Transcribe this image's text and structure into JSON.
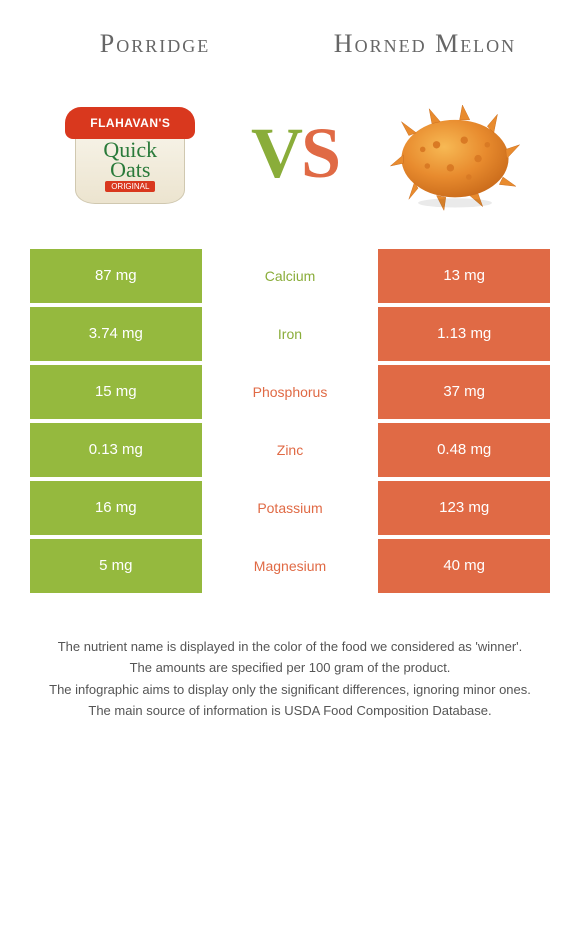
{
  "titles": {
    "left": "Porridge",
    "right": "Horned Melon"
  },
  "vs": {
    "v": "V",
    "s": "S"
  },
  "colors": {
    "left_bg": "#95b93e",
    "right_bg": "#e06a45",
    "left_text": "#8aad3a",
    "right_text": "#e06a45"
  },
  "images": {
    "oats_banner": "FLAHAVAN'S",
    "oats_line1": "Quick",
    "oats_line2": "Oats",
    "oats_tag": "ORIGINAL"
  },
  "rows": [
    {
      "left": "87 mg",
      "mid": "Calcium",
      "right": "13 mg",
      "winner": "left"
    },
    {
      "left": "3.74 mg",
      "mid": "Iron",
      "right": "1.13 mg",
      "winner": "left"
    },
    {
      "left": "15 mg",
      "mid": "Phosphorus",
      "right": "37 mg",
      "winner": "right"
    },
    {
      "left": "0.13 mg",
      "mid": "Zinc",
      "right": "0.48 mg",
      "winner": "right"
    },
    {
      "left": "16 mg",
      "mid": "Potassium",
      "right": "123 mg",
      "winner": "right"
    },
    {
      "left": "5 mg",
      "mid": "Magnesium",
      "right": "40 mg",
      "winner": "right"
    }
  ],
  "footer": [
    "The nutrient name is displayed in the color of the food we considered as 'winner'.",
    "The amounts are specified per 100 gram of the product.",
    "The infographic aims to display only the significant differences, ignoring minor ones.",
    "The main source of information is USDA Food Composition Database."
  ]
}
